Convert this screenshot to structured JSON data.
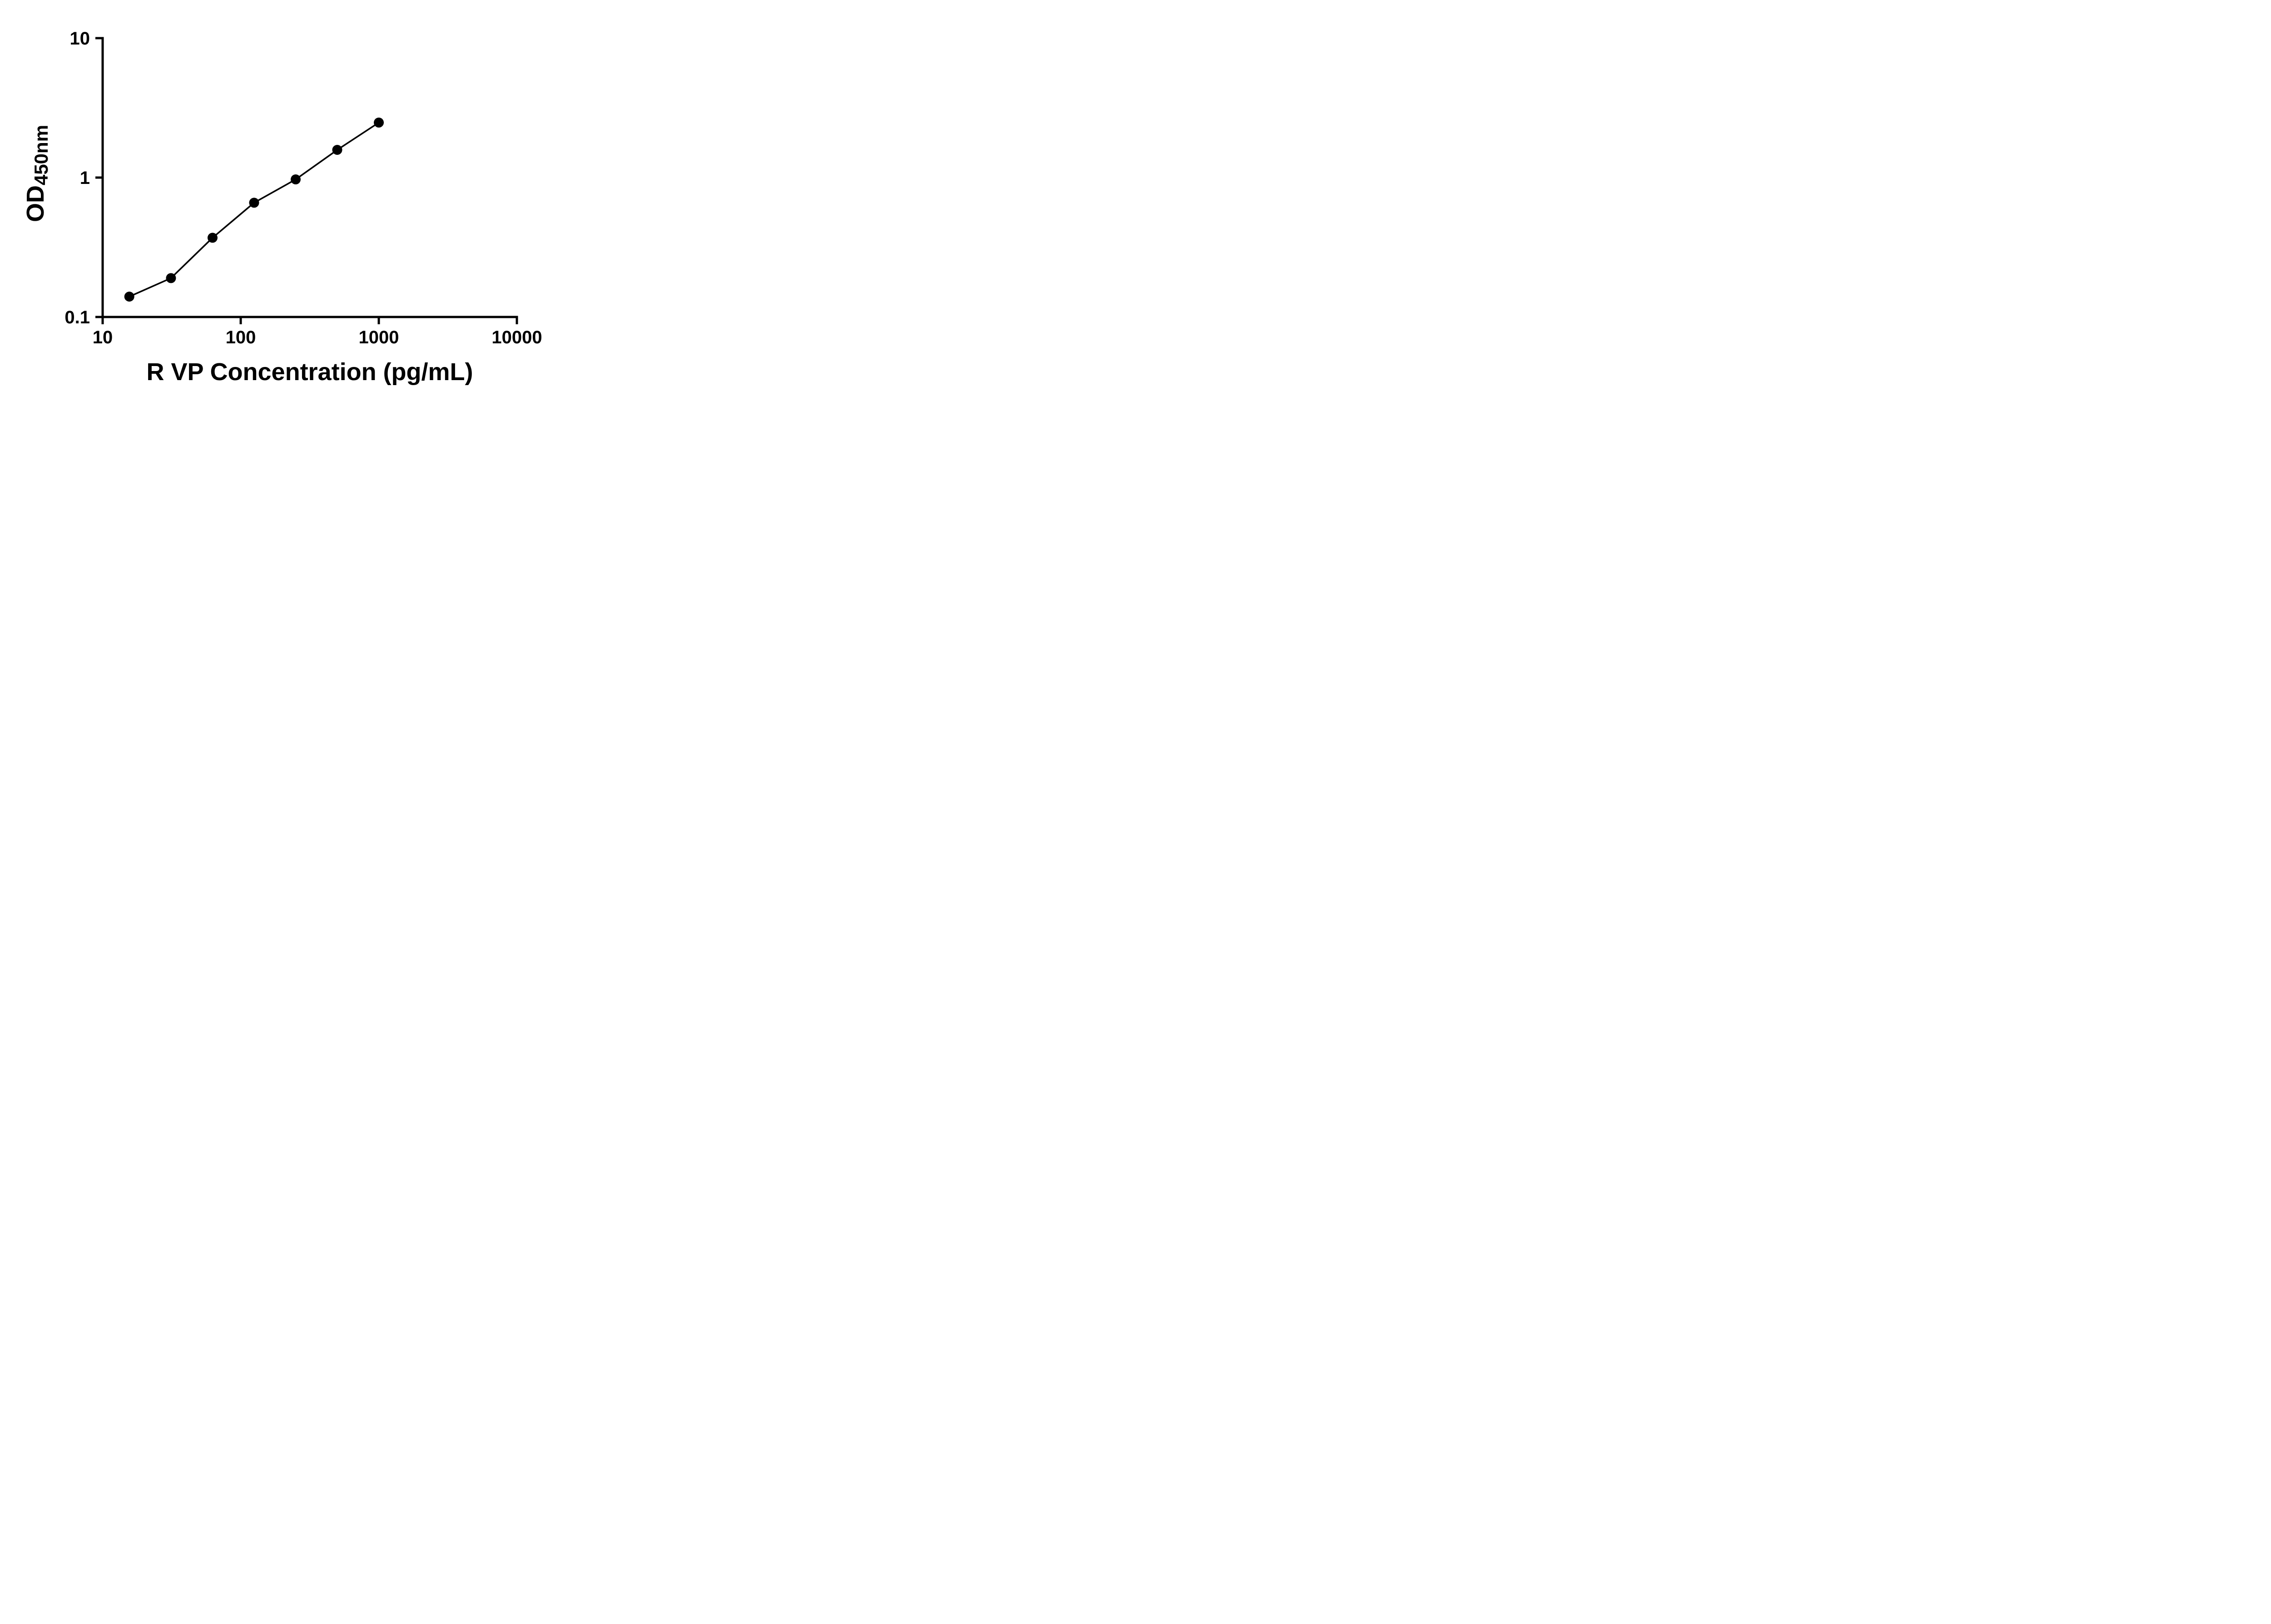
{
  "chart_data": {
    "type": "scatter",
    "title": "",
    "xlabel": "R VP Concentration (pg/mL)",
    "ylabel_main": "OD",
    "ylabel_sub": "450nm",
    "x_scale": "log",
    "y_scale": "log",
    "xlim": [
      10,
      10000
    ],
    "ylim": [
      0.1,
      10
    ],
    "grid": false,
    "legend": "none",
    "line_through_points": true,
    "x": [
      15.6,
      31.25,
      62.5,
      125,
      250,
      500,
      1000
    ],
    "y": [
      0.14,
      0.19,
      0.37,
      0.66,
      0.97,
      1.58,
      2.48
    ],
    "x_ticks": [
      {
        "value": 10,
        "label": "10"
      },
      {
        "value": 100,
        "label": "100"
      },
      {
        "value": 1000,
        "label": "1000"
      },
      {
        "value": 10000,
        "label": "10000"
      }
    ],
    "y_ticks": [
      {
        "value": 0.1,
        "label": "0.1"
      },
      {
        "value": 1,
        "label": "1"
      },
      {
        "value": 10,
        "label": "10"
      }
    ],
    "colors": {
      "axis": "#000000",
      "line": "#000000",
      "marker": "#000000",
      "background": "#ffffff"
    }
  }
}
